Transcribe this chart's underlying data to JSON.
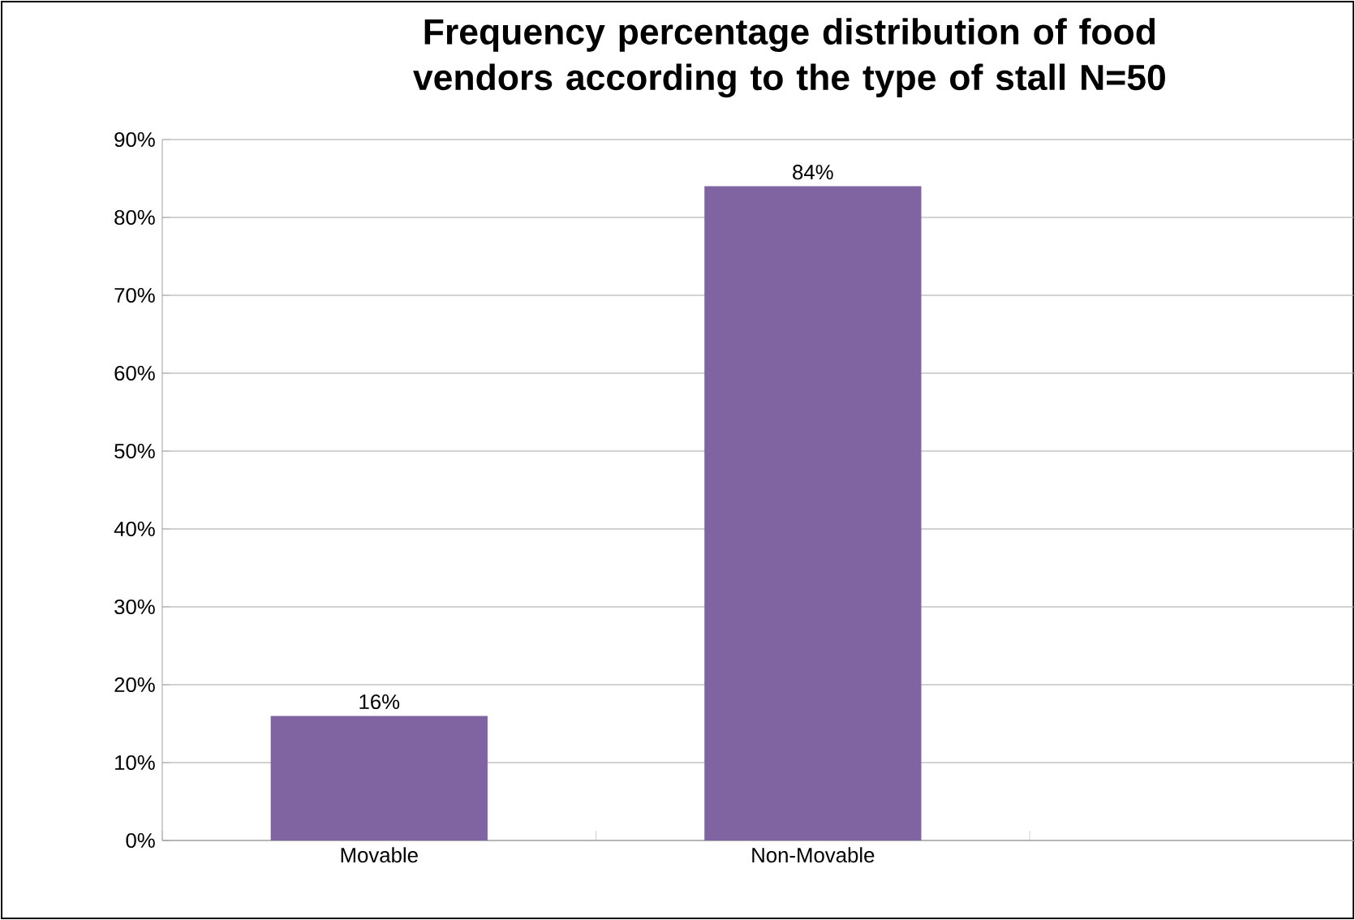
{
  "chart_data": {
    "type": "bar",
    "title": "Frequency percentage distribution of food vendors according to the type of stall    N=50",
    "categories": [
      "Movable",
      "Non-Movable"
    ],
    "values": [
      16,
      84
    ],
    "value_labels": [
      "16%",
      "84%"
    ],
    "color": "#8064a2",
    "ylim": [
      0,
      90
    ],
    "yticks": [
      {
        "value": 0,
        "label": "0%"
      },
      {
        "value": 10,
        "label": "10%"
      },
      {
        "value": 20,
        "label": "20%"
      },
      {
        "value": 30,
        "label": "30%"
      },
      {
        "value": 40,
        "label": "40%"
      },
      {
        "value": 50,
        "label": "50%"
      },
      {
        "value": 60,
        "label": "60%"
      },
      {
        "value": 70,
        "label": "70%"
      },
      {
        "value": 80,
        "label": "80%"
      },
      {
        "value": 90,
        "label": "90%"
      }
    ],
    "grid": "y"
  }
}
